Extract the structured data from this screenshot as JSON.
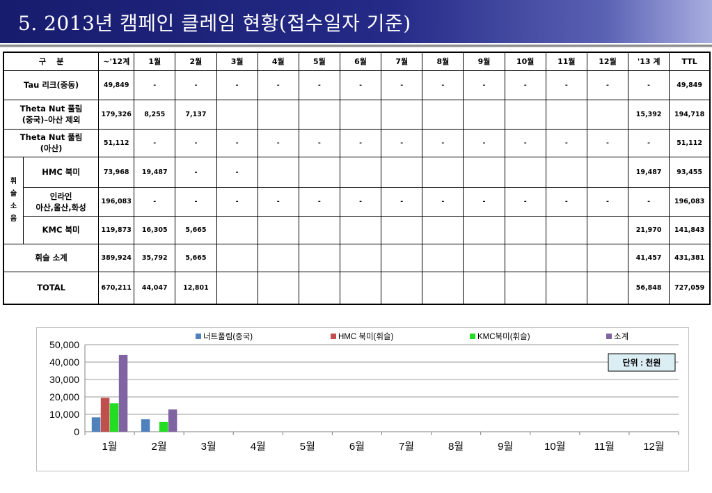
{
  "slide": {
    "title": "5. 2013년 캠페인 클레임 현황(접수일자 기준)"
  },
  "table": {
    "columns": [
      "구    분",
      "~'12계",
      "1월",
      "2월",
      "3월",
      "4월",
      "5월",
      "6월",
      "7월",
      "8월",
      "9월",
      "10월",
      "11월",
      "12월",
      "'13 계",
      "TTL"
    ],
    "group_label": "휘\n슬\n소\n음",
    "rows": [
      {
        "label": "Tau 리크(중동)",
        "cells": [
          "49,849",
          "-",
          "-",
          "-",
          "-",
          "-",
          "-",
          "-",
          "-",
          "-",
          "-",
          "-",
          "-",
          "-",
          "49,849"
        ]
      },
      {
        "label": "Theta Nut 풀림\n(중국)–아산 제외",
        "cells": [
          "179,326",
          "8,255",
          "7,137",
          "",
          "",
          "",
          "",
          "",
          "",
          "",
          "",
          "",
          "",
          "15,392",
          "194,718"
        ]
      },
      {
        "label": "Theta Nut 풀림\n(아산)",
        "cells": [
          "51,112",
          "-",
          "-",
          "-",
          "-",
          "-",
          "-",
          "-",
          "-",
          "-",
          "-",
          "-",
          "-",
          "-",
          "51,112"
        ]
      },
      {
        "label": "HMC 북미",
        "cells": [
          "73,968",
          "19,487",
          "-",
          "-",
          "",
          "",
          "",
          "",
          "",
          "",
          "",
          "",
          "",
          "19,487",
          "93,455"
        ]
      },
      {
        "label": "인라인\n아산,울산,화성",
        "cells": [
          "196,083",
          "-",
          "-",
          "-",
          "-",
          "-",
          "-",
          "-",
          "-",
          "-",
          "-",
          "-",
          "-",
          "-",
          "196,083"
        ]
      },
      {
        "label": "KMC 북미",
        "cells": [
          "119,873",
          "16,305",
          "5,665",
          "",
          "",
          "",
          "",
          "",
          "",
          "",
          "",
          "",
          "",
          "21,970",
          "141,843"
        ]
      },
      {
        "label": "휘슬 소계",
        "cells": [
          "389,924",
          "35,792",
          "5,665",
          "",
          "",
          "",
          "",
          "",
          "",
          "",
          "",
          "",
          "",
          "41,457",
          "431,381"
        ]
      },
      {
        "label": "TOTAL",
        "cells": [
          "670,211",
          "44,047",
          "12,801",
          "",
          "",
          "",
          "",
          "",
          "",
          "",
          "",
          "",
          "",
          "56,848",
          "727,059"
        ]
      }
    ]
  },
  "chart_data": {
    "type": "bar",
    "categories": [
      "1월",
      "2월",
      "3월",
      "4월",
      "5월",
      "6월",
      "7월",
      "8월",
      "9월",
      "10월",
      "11월",
      "12월"
    ],
    "series": [
      {
        "name": "너트풀림(중국)",
        "color": "#4f81bd",
        "values": [
          8255,
          7137,
          null,
          null,
          null,
          null,
          null,
          null,
          null,
          null,
          null,
          null
        ]
      },
      {
        "name": "HMC 북미(휘슬)",
        "color": "#c0504d",
        "values": [
          19487,
          null,
          null,
          null,
          null,
          null,
          null,
          null,
          null,
          null,
          null,
          null
        ]
      },
      {
        "name": "KMC북미(휘슬)",
        "color": "#22dd22",
        "values": [
          16305,
          5665,
          null,
          null,
          null,
          null,
          null,
          null,
          null,
          null,
          null,
          null
        ]
      },
      {
        "name": "소계",
        "color": "#8064a2",
        "values": [
          44047,
          12801,
          null,
          null,
          null,
          null,
          null,
          null,
          null,
          null,
          null,
          null
        ]
      }
    ],
    "ylim": [
      0,
      50000
    ],
    "yticks": [
      "0",
      "10,000",
      "20,000",
      "30,000",
      "40,000",
      "50,000"
    ],
    "grid": true,
    "legend": "top",
    "unit_note": "단위 : 천원"
  }
}
